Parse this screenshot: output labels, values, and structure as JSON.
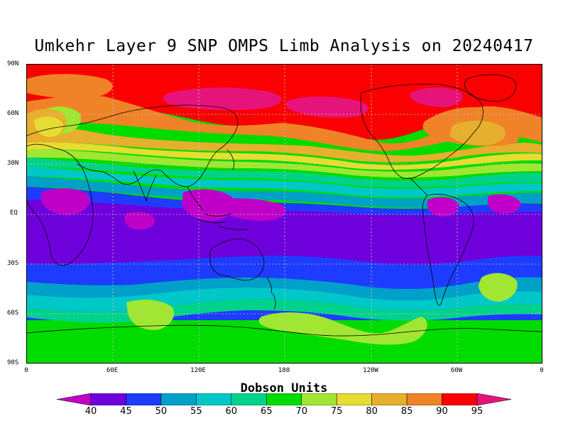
{
  "title": "Umkehr Layer 9 SNP OMPS Limb Analysis on 20240417",
  "lat_labels": [
    "90N",
    "60N",
    "30N",
    "EQ",
    "30S",
    "60S",
    "90S"
  ],
  "lon_labels": [
    "0",
    "60E",
    "120E",
    "180",
    "120W",
    "60W",
    "0"
  ],
  "units_label": "Dobson Units",
  "colorbar": {
    "levels": [
      "40",
      "45",
      "50",
      "55",
      "60",
      "65",
      "70",
      "75",
      "80",
      "85",
      "90",
      "95"
    ],
    "colors": [
      "#c000c8",
      "#6e00dc",
      "#1e3cff",
      "#00a0c8",
      "#00c8c8",
      "#00d28c",
      "#00dc00",
      "#a0e632",
      "#e6dc32",
      "#e6af2d",
      "#f08228",
      "#fa0000",
      "#e6147a"
    ]
  },
  "map_colors": {
    "background": "#00dc00",
    "coast": "#000000",
    "grid": "#c8c8c8"
  }
}
